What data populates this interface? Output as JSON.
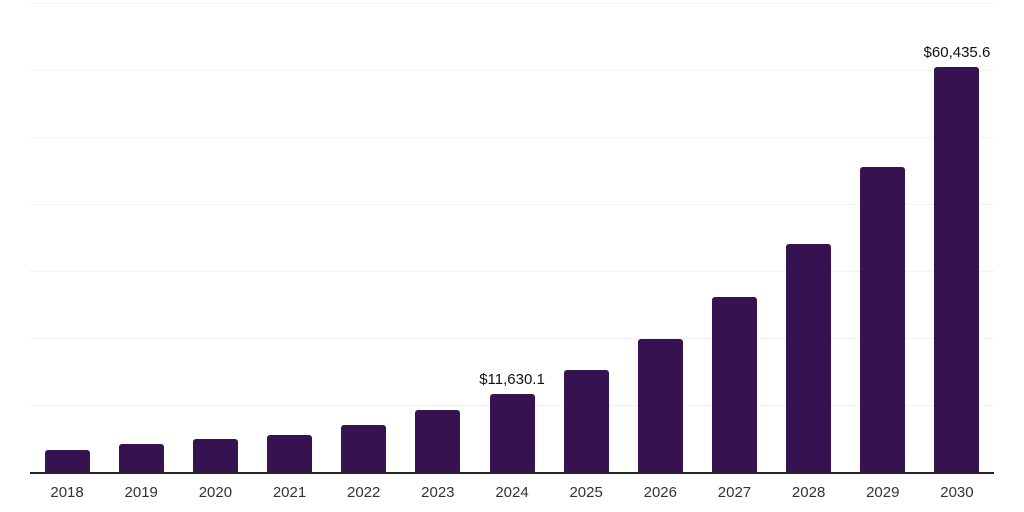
{
  "chart": {
    "background_color": "#ffffff",
    "bar_color": "#371250",
    "grid_color": "#f1f1f1",
    "axis_color": "#262626",
    "value_label_color": "#111111",
    "tick_label_color": "#333333"
  },
  "chart_data": {
    "type": "bar",
    "title": "",
    "xlabel": "",
    "ylabel": "",
    "categories": [
      "2018",
      "2019",
      "2020",
      "2021",
      "2022",
      "2023",
      "2024",
      "2025",
      "2026",
      "2027",
      "2028",
      "2029",
      "2030"
    ],
    "values": [
      3300,
      4200,
      4900,
      5500,
      7000,
      9200,
      11630.1,
      15200,
      19900,
      26100,
      34000,
      45500,
      60435.6
    ],
    "annotations": [
      {
        "category": "2024",
        "text": "$11,630.1"
      },
      {
        "category": "2030",
        "text": "$60,435.6"
      }
    ],
    "ylim": [
      0,
      70000
    ],
    "grid_interval": 10000,
    "grid": "horizontal",
    "legend": "none",
    "y_axis_labels_visible": false
  }
}
